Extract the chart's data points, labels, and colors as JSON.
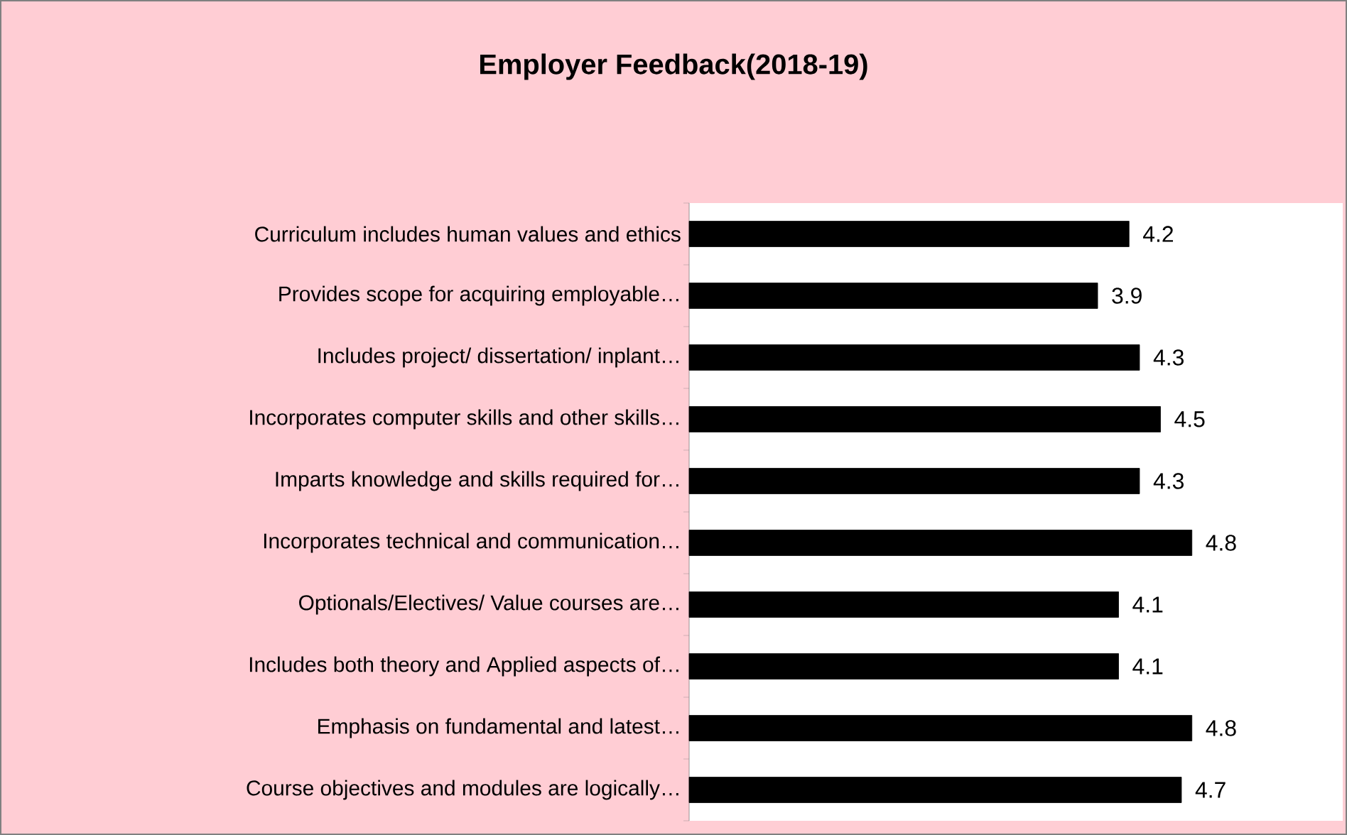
{
  "chart_data": {
    "type": "bar",
    "orientation": "horizontal",
    "title": "Employer Feedback(2018-19)",
    "categories": [
      "Curriculum includes human values and ethics",
      "Provides scope for acquiring employable…",
      "Includes project/ dissertation/ inplant…",
      "Incorporates computer skills and other skills…",
      "Imparts knowledge and skills required for…",
      "Incorporates technical and communication…",
      "Optionals/Electives/ Value courses are…",
      "Includes both theory and Applied aspects of…",
      "Emphasis on fundamental and latest…",
      "Course objectives and modules are logically…"
    ],
    "values": [
      4.2,
      3.9,
      4.3,
      4.5,
      4.3,
      4.8,
      4.1,
      4.1,
      4.8,
      4.7
    ],
    "color": "#000000",
    "data_labels": true
  }
}
